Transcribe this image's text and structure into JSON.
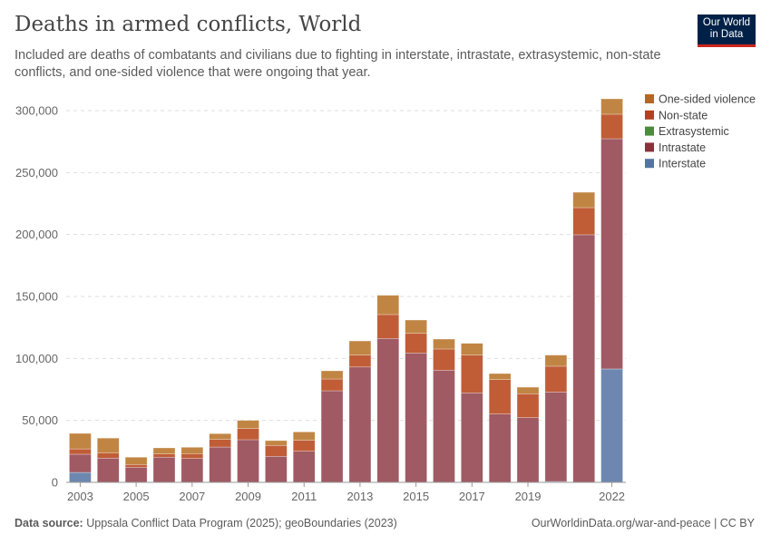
{
  "header": {
    "title": "Deaths in armed conflicts, World",
    "subtitle": "Included are deaths of combatants and civilians due to fighting in interstate, intrastate, extrasystemic, non-state conflicts, and one-sided violence that were ongoing that year.",
    "logo": "Our World in Data"
  },
  "footer": {
    "source_label": "Data source:",
    "source": "Uppsala Conflict Data Program (2025); geoBoundaries (2023)",
    "link": "OurWorldinData.org/war-and-peace | CC BY"
  },
  "chart_data": {
    "type": "bar",
    "stacked": true,
    "title": "Deaths in armed conflicts, World",
    "xlabel": "",
    "ylabel": "",
    "ylim": [
      0,
      300000
    ],
    "yticks": [
      0,
      50000,
      100000,
      150000,
      200000,
      250000,
      300000
    ],
    "ytick_labels": [
      "0",
      "50,000",
      "100,000",
      "150,000",
      "200,000",
      "250,000",
      "300,000"
    ],
    "xtick_labels": [
      "2003",
      "2005",
      "2007",
      "2009",
      "2011",
      "2013",
      "2015",
      "2017",
      "2019",
      "2022"
    ],
    "grid": "horizontal dashed",
    "legend": "top-right",
    "categories": [
      2003,
      2004,
      2005,
      2006,
      2007,
      2008,
      2009,
      2010,
      2011,
      2012,
      2013,
      2014,
      2015,
      2016,
      2017,
      2018,
      2019,
      2020,
      2021,
      2022
    ],
    "series": [
      {
        "name": "Interstate",
        "color": "#6d87b0",
        "values": [
          8000,
          0,
          0,
          0,
          0,
          0,
          0,
          0,
          0,
          0,
          0,
          0,
          0,
          0,
          0,
          0,
          0,
          700,
          0,
          91500
        ]
      },
      {
        "name": "Intrastate",
        "color": "#a05a64",
        "values": [
          14700,
          19500,
          12200,
          20300,
          19300,
          28500,
          34400,
          21000,
          25100,
          73900,
          93100,
          116100,
          104400,
          90500,
          72200,
          55100,
          52200,
          72200,
          199800,
          185800
        ]
      },
      {
        "name": "Extrasystemic",
        "color": "#578145",
        "values": [
          0,
          0,
          0,
          0,
          0,
          0,
          0,
          0,
          0,
          0,
          0,
          0,
          0,
          0,
          0,
          0,
          0,
          0,
          0,
          0
        ]
      },
      {
        "name": "Non-state",
        "color": "#c05d37",
        "values": [
          4300,
          4400,
          2200,
          2600,
          3900,
          6100,
          9000,
          8800,
          8800,
          9500,
          9600,
          19300,
          15800,
          17100,
          30500,
          27800,
          19300,
          20800,
          21900,
          19800
        ]
      },
      {
        "name": "One-sided violence",
        "color": "#c18543",
        "values": [
          12500,
          11800,
          5900,
          4900,
          5100,
          4700,
          6600,
          3900,
          6800,
          6600,
          11400,
          15600,
          10800,
          8000,
          9500,
          4900,
          5300,
          9000,
          12400,
          12400
        ]
      }
    ],
    "legend_colors": {
      "One-sided violence": "#b8651f",
      "Non-state": "#b5401c",
      "Extrasystemic": "#4e8a3c",
      "Intrastate": "#8e2f3c",
      "Interstate": "#5474a8"
    }
  }
}
